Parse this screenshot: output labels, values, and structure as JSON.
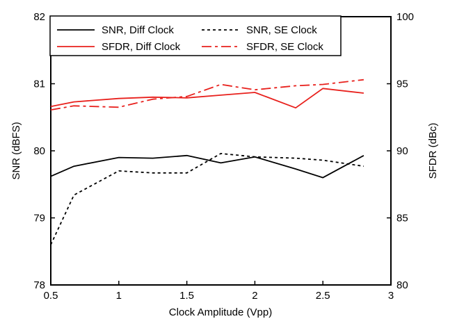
{
  "chart_data": {
    "type": "line",
    "title": "",
    "xlabel": "Clock Amplitude (Vpp)",
    "ylabel_left": "SNR (dBFS)",
    "ylabel_right": "SFDR (dBc)",
    "xlim": [
      0.5,
      3
    ],
    "ylim_left": [
      78,
      82
    ],
    "ylim_right": [
      80,
      100
    ],
    "x_ticks": [
      "0.5",
      "1",
      "1.5",
      "2",
      "2.5",
      "3"
    ],
    "y_left_ticks": [
      "78",
      "79",
      "80",
      "81",
      "82"
    ],
    "y_right_ticks": [
      "80",
      "85",
      "90",
      "95",
      "100"
    ],
    "grid": false,
    "legend_position": "top-left",
    "series": [
      {
        "name": "SNR, Diff Clock",
        "axis": "left",
        "color": "#000000",
        "dash": "solid",
        "x": [
          0.5,
          0.67,
          1.0,
          1.25,
          1.5,
          1.75,
          2.0,
          2.3,
          2.5,
          2.8
        ],
        "y": [
          79.62,
          79.77,
          79.9,
          79.89,
          79.93,
          79.82,
          79.91,
          79.73,
          79.6,
          79.93
        ]
      },
      {
        "name": "SNR, SE Clock",
        "axis": "left",
        "color": "#000000",
        "dash": "dotted",
        "x": [
          0.5,
          0.67,
          1.0,
          1.25,
          1.5,
          1.75,
          2.0,
          2.3,
          2.5,
          2.8
        ],
        "y": [
          78.6,
          79.34,
          79.7,
          79.67,
          79.67,
          79.96,
          79.91,
          79.89,
          79.86,
          79.77
        ]
      },
      {
        "name": "SFDR, Diff Clock",
        "axis": "right",
        "color": "#e8201c",
        "dash": "solid",
        "x": [
          0.5,
          0.67,
          1.0,
          1.25,
          1.5,
          1.75,
          2.0,
          2.3,
          2.5,
          2.8
        ],
        "y": [
          93.3,
          93.65,
          93.9,
          94.0,
          93.95,
          94.15,
          94.35,
          93.2,
          94.65,
          94.3
        ]
      },
      {
        "name": "SFDR, SE Clock",
        "axis": "right",
        "color": "#e8201c",
        "dash": "dashdot",
        "x": [
          0.5,
          0.67,
          1.0,
          1.25,
          1.5,
          1.75,
          2.0,
          2.3,
          2.5,
          2.8
        ],
        "y": [
          93.05,
          93.35,
          93.25,
          93.85,
          94.05,
          94.95,
          94.55,
          94.85,
          94.95,
          95.3
        ]
      }
    ]
  }
}
